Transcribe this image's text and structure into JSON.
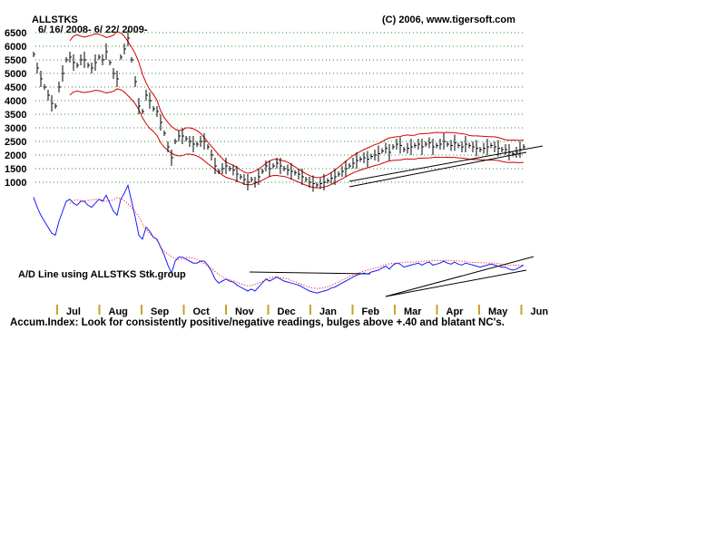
{
  "chart_data": {
    "type": "line",
    "title": "ALLSTKS",
    "subtitle": "6/ 16/ 2008- 6/ 22/ 2009-",
    "copyright": "(C) 2006, www.tigersoft.com",
    "yticks": [
      "6500",
      "6000",
      "5500",
      "5000",
      "4500",
      "4000",
      "3500",
      "3000",
      "2500",
      "2000",
      "1500",
      "1000"
    ],
    "ylim": [
      1000,
      6500
    ],
    "grid": "dotted-horizontal",
    "months": [
      "Jul",
      "Aug",
      "Sep",
      "Oct",
      "Nov",
      "Dec",
      "Jan",
      "Feb",
      "Mar",
      "Apr",
      "May",
      "Jun"
    ],
    "ad_label": "A/D Line using ALLSTKS Stk.group",
    "footer_note": "Accum.Index: Look for consistently positive/negative readings, bulges above +.40 and blatant NC's.",
    "series": [
      {
        "role": "price-close",
        "x": [
          0,
          4,
          8,
          12,
          16,
          20,
          24,
          28,
          32,
          36,
          40,
          44,
          48,
          52,
          56,
          60,
          64,
          68,
          72,
          76,
          80,
          84,
          88,
          92,
          96,
          100,
          104,
          108,
          112,
          116,
          120,
          124,
          128,
          132,
          136,
          140,
          144,
          148,
          152,
          156,
          160,
          164,
          168,
          172,
          176,
          180,
          184,
          188,
          192,
          196,
          200,
          204,
          208,
          212,
          216,
          220,
          224,
          228,
          232,
          236,
          240,
          244,
          248,
          252,
          256,
          260
        ],
        "values": [
          5700,
          5200,
          4800,
          4500,
          4200,
          3900,
          3800,
          4500,
          5000,
          5500,
          5600,
          5400,
          5300,
          5500,
          5500,
          5300,
          5200,
          5400,
          5600,
          5500,
          5800,
          5400,
          5000,
          4800,
          5600,
          5900,
          6300,
          5500,
          4700,
          3800,
          3600,
          4200,
          4000,
          3700,
          3600,
          3200,
          2800,
          2300,
          1900,
          2500,
          2700,
          2700,
          2600,
          2500,
          2400,
          2400,
          2500,
          2500,
          2300,
          2000,
          1600,
          1400,
          1500,
          1600,
          1500,
          1450,
          1300,
          1200,
          1100,
          1000,
          1100,
          1000,
          1200,
          1400,
          1600,
          1500
        ]
      },
      {
        "role": "price-close-2",
        "x": [
          264,
          268,
          272,
          276,
          280,
          284,
          288,
          292,
          296,
          300,
          304,
          308,
          312,
          316,
          320,
          324,
          328,
          332,
          336,
          340,
          344,
          348,
          352,
          356,
          360,
          364,
          368,
          372,
          376,
          380,
          384,
          388,
          392,
          396,
          400,
          404,
          408,
          412,
          416,
          420,
          424,
          428,
          432,
          436,
          440,
          444,
          448,
          452,
          456,
          460,
          464,
          468,
          472,
          476,
          480,
          484,
          488,
          492,
          496,
          500,
          504,
          508,
          512,
          516,
          520,
          524,
          528,
          532,
          536,
          540
        ],
        "values": [
          1600,
          1700,
          1600,
          1500,
          1450,
          1400,
          1350,
          1300,
          1200,
          1100,
          1000,
          950,
          900,
          950,
          1000,
          1050,
          1150,
          1200,
          1300,
          1400,
          1500,
          1600,
          1700,
          1800,
          1850,
          1900,
          1850,
          1950,
          2000,
          2050,
          2150,
          2250,
          2100,
          2300,
          2400,
          2350,
          2200,
          2250,
          2300,
          2350,
          2400,
          2300,
          2400,
          2450,
          2300,
          2350,
          2400,
          2500,
          2400,
          2350,
          2450,
          2350,
          2300,
          2400,
          2350,
          2300,
          2250,
          2200,
          2250,
          2300,
          2350,
          2300,
          2250,
          2200,
          2200,
          2100,
          2050,
          2100,
          2200,
          2300
        ]
      }
    ]
  }
}
